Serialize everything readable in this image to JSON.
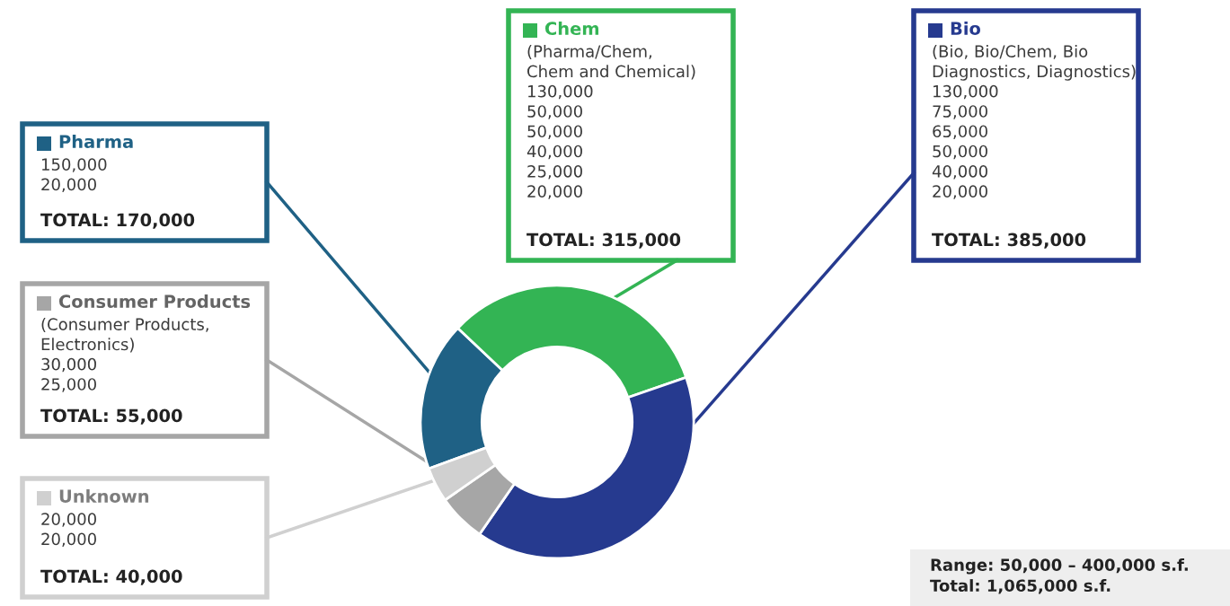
{
  "chart_data": {
    "type": "donut",
    "categories": [
      "Pharma",
      "Chem",
      "Bio",
      "Consumer Products",
      "Unknown"
    ],
    "values": [
      17.62,
      32.64,
      39.9,
      5.7,
      4.14
    ],
    "colors": [
      "#1f6185",
      "#33b454",
      "#263a8f",
      "#a6a6a6",
      "#d0d0d0"
    ],
    "legend": "left",
    "annotations": [
      "150,000\n20,000",
      "(Pharma/Chem,\nChem and Chemical)\n130,000\n50,000\n50,000\n40,000\n25,000\n20,000",
      "(Bio, Bio/Chem, Bio\nDiagnostics, Diagnostics)\n130,000\n75,000\n65,000\n50,000\n40,000\n20,000",
      "(Consumer Products,\nElectronics)\n30,000\n25,000",
      "20,000\n20,000",
      "TOTAL: 170,000",
      "TOTAL: 315,000",
      "TOTAL: 385,000",
      "TOTAL: 55,000",
      "TOTAL: 40,000",
      "Range: 50,000 – 400,000 s.f.\nTotal: 1,065,000 s.f."
    ]
  }
}
